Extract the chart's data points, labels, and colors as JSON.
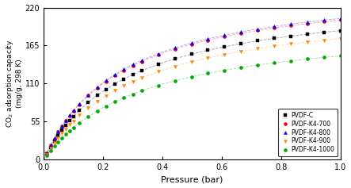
{
  "xlabel": "Pressure (bar)",
  "ylabel": "CO$_2$ adsorption capacity (mg/g, 298 K)",
  "xlim": [
    0.0,
    1.0
  ],
  "ylim": [
    0,
    220
  ],
  "yticks": [
    0,
    55,
    110,
    165,
    220
  ],
  "xticks": [
    0.0,
    0.2,
    0.4,
    0.6,
    0.8,
    1.0
  ],
  "series": [
    {
      "label": "PVDF-C",
      "color": "#000000",
      "marker": "s",
      "line_color": "#aaaaaa",
      "q_max": 240,
      "b": 3.5
    },
    {
      "label": "PVDF-K4-700",
      "color": "#ff0000",
      "marker": "o",
      "line_color": "#ffaaaa",
      "q_max": 255,
      "b": 3.8
    },
    {
      "label": "PVDF-K4-800",
      "color": "#0000ff",
      "marker": "^",
      "line_color": "#aaaaff",
      "q_max": 258,
      "b": 3.8
    },
    {
      "label": "PVDF-K4-900",
      "color": "#ff8800",
      "marker": "v",
      "line_color": "#ffddaa",
      "q_max": 230,
      "b": 3.2
    },
    {
      "label": "PVDF-K4-1000",
      "color": "#00aa00",
      "marker": "o",
      "line_color": "#aaddaa",
      "q_max": 200,
      "b": 3.0
    }
  ]
}
